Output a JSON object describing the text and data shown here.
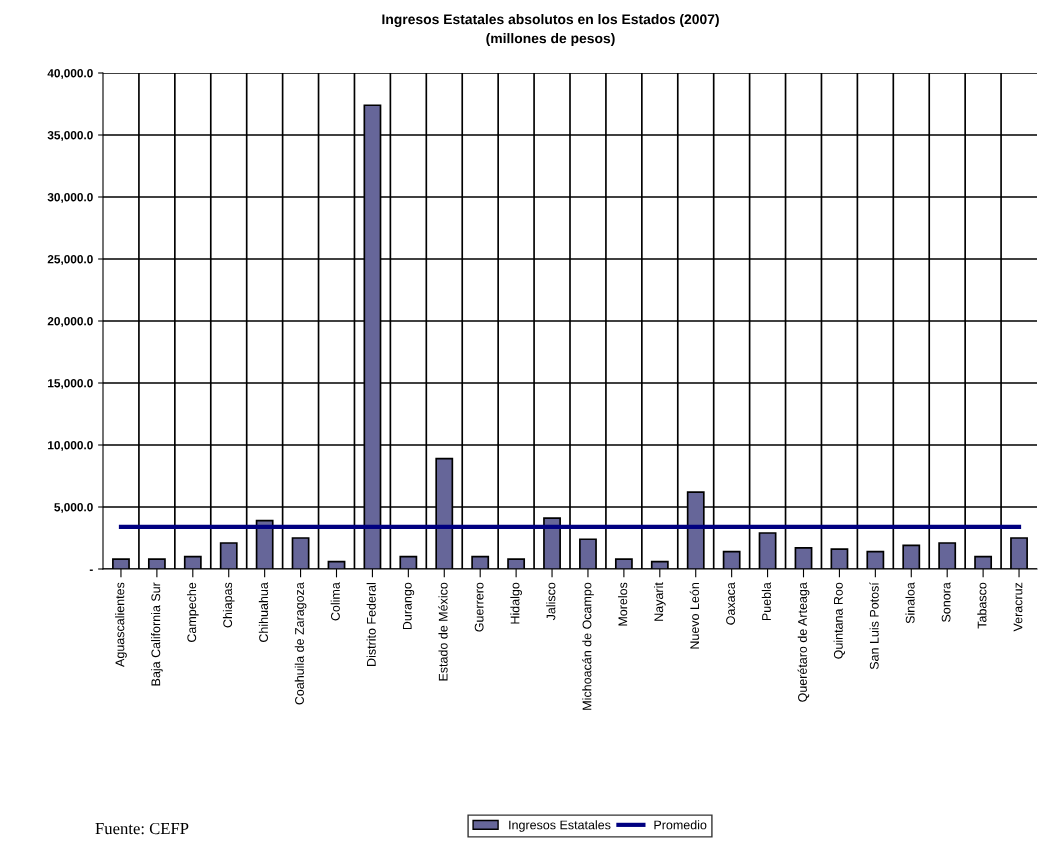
{
  "chart_data": {
    "type": "bar",
    "title": "Ingresos Estatales absolutos en los Estados (2007)\n(millones de pesos)",
    "categories": [
      "Aguascalientes",
      "Baja California Sur",
      "Campeche",
      "Chiapas",
      "Chihuahua",
      "Coahuila de Zaragoza",
      "Colima",
      "Distrito Federal",
      "Durango",
      "Estado de México",
      "Guerrero",
      "Hidalgo",
      "Jalisco",
      "Michoacán de Ocampo",
      "Morelos",
      "Nayarit",
      "Nuevo León",
      "Oaxaca",
      "Puebla",
      "Querétaro de Arteaga",
      "Quintana Roo",
      "San Luis Potosí",
      "Sinaloa",
      "Sonora",
      "Tabasco",
      "Veracruz"
    ],
    "series": [
      {
        "name": "Ingresos Estatales",
        "color": "#666699",
        "values": [
          800,
          800,
          1000,
          2100,
          3900,
          2500,
          600,
          37400,
          1000,
          8900,
          1000,
          800,
          4100,
          2400,
          800,
          600,
          6200,
          1400,
          2900,
          1700,
          1600,
          1400,
          1900,
          2100,
          1000,
          2500
        ]
      },
      {
        "name": "Promedio",
        "type": "line",
        "color": "#000080",
        "values": [
          3400,
          3400,
          3400,
          3400,
          3400,
          3400,
          3400,
          3400,
          3400,
          3400,
          3400,
          3400,
          3400,
          3400,
          3400,
          3400,
          3400,
          3400,
          3400,
          3400,
          3400,
          3400,
          3400,
          3400,
          3400,
          3400
        ]
      }
    ],
    "ylim": [
      0,
      40000
    ],
    "yticks": [
      {
        "value": 0,
        "label": "-"
      },
      {
        "value": 5000,
        "label": "5,000.0"
      },
      {
        "value": 10000,
        "label": "10,000.0"
      },
      {
        "value": 15000,
        "label": "15,000.0"
      },
      {
        "value": 20000,
        "label": "20,000.0"
      },
      {
        "value": 25000,
        "label": "25,000.0"
      },
      {
        "value": 30000,
        "label": "30,000.0"
      },
      {
        "value": 35000,
        "label": "35,000.0"
      },
      {
        "value": 40000,
        "label": "40,000.0"
      }
    ],
    "grid": true,
    "legend": "bottom",
    "annotations": [
      "Fuente: CEFP"
    ]
  }
}
